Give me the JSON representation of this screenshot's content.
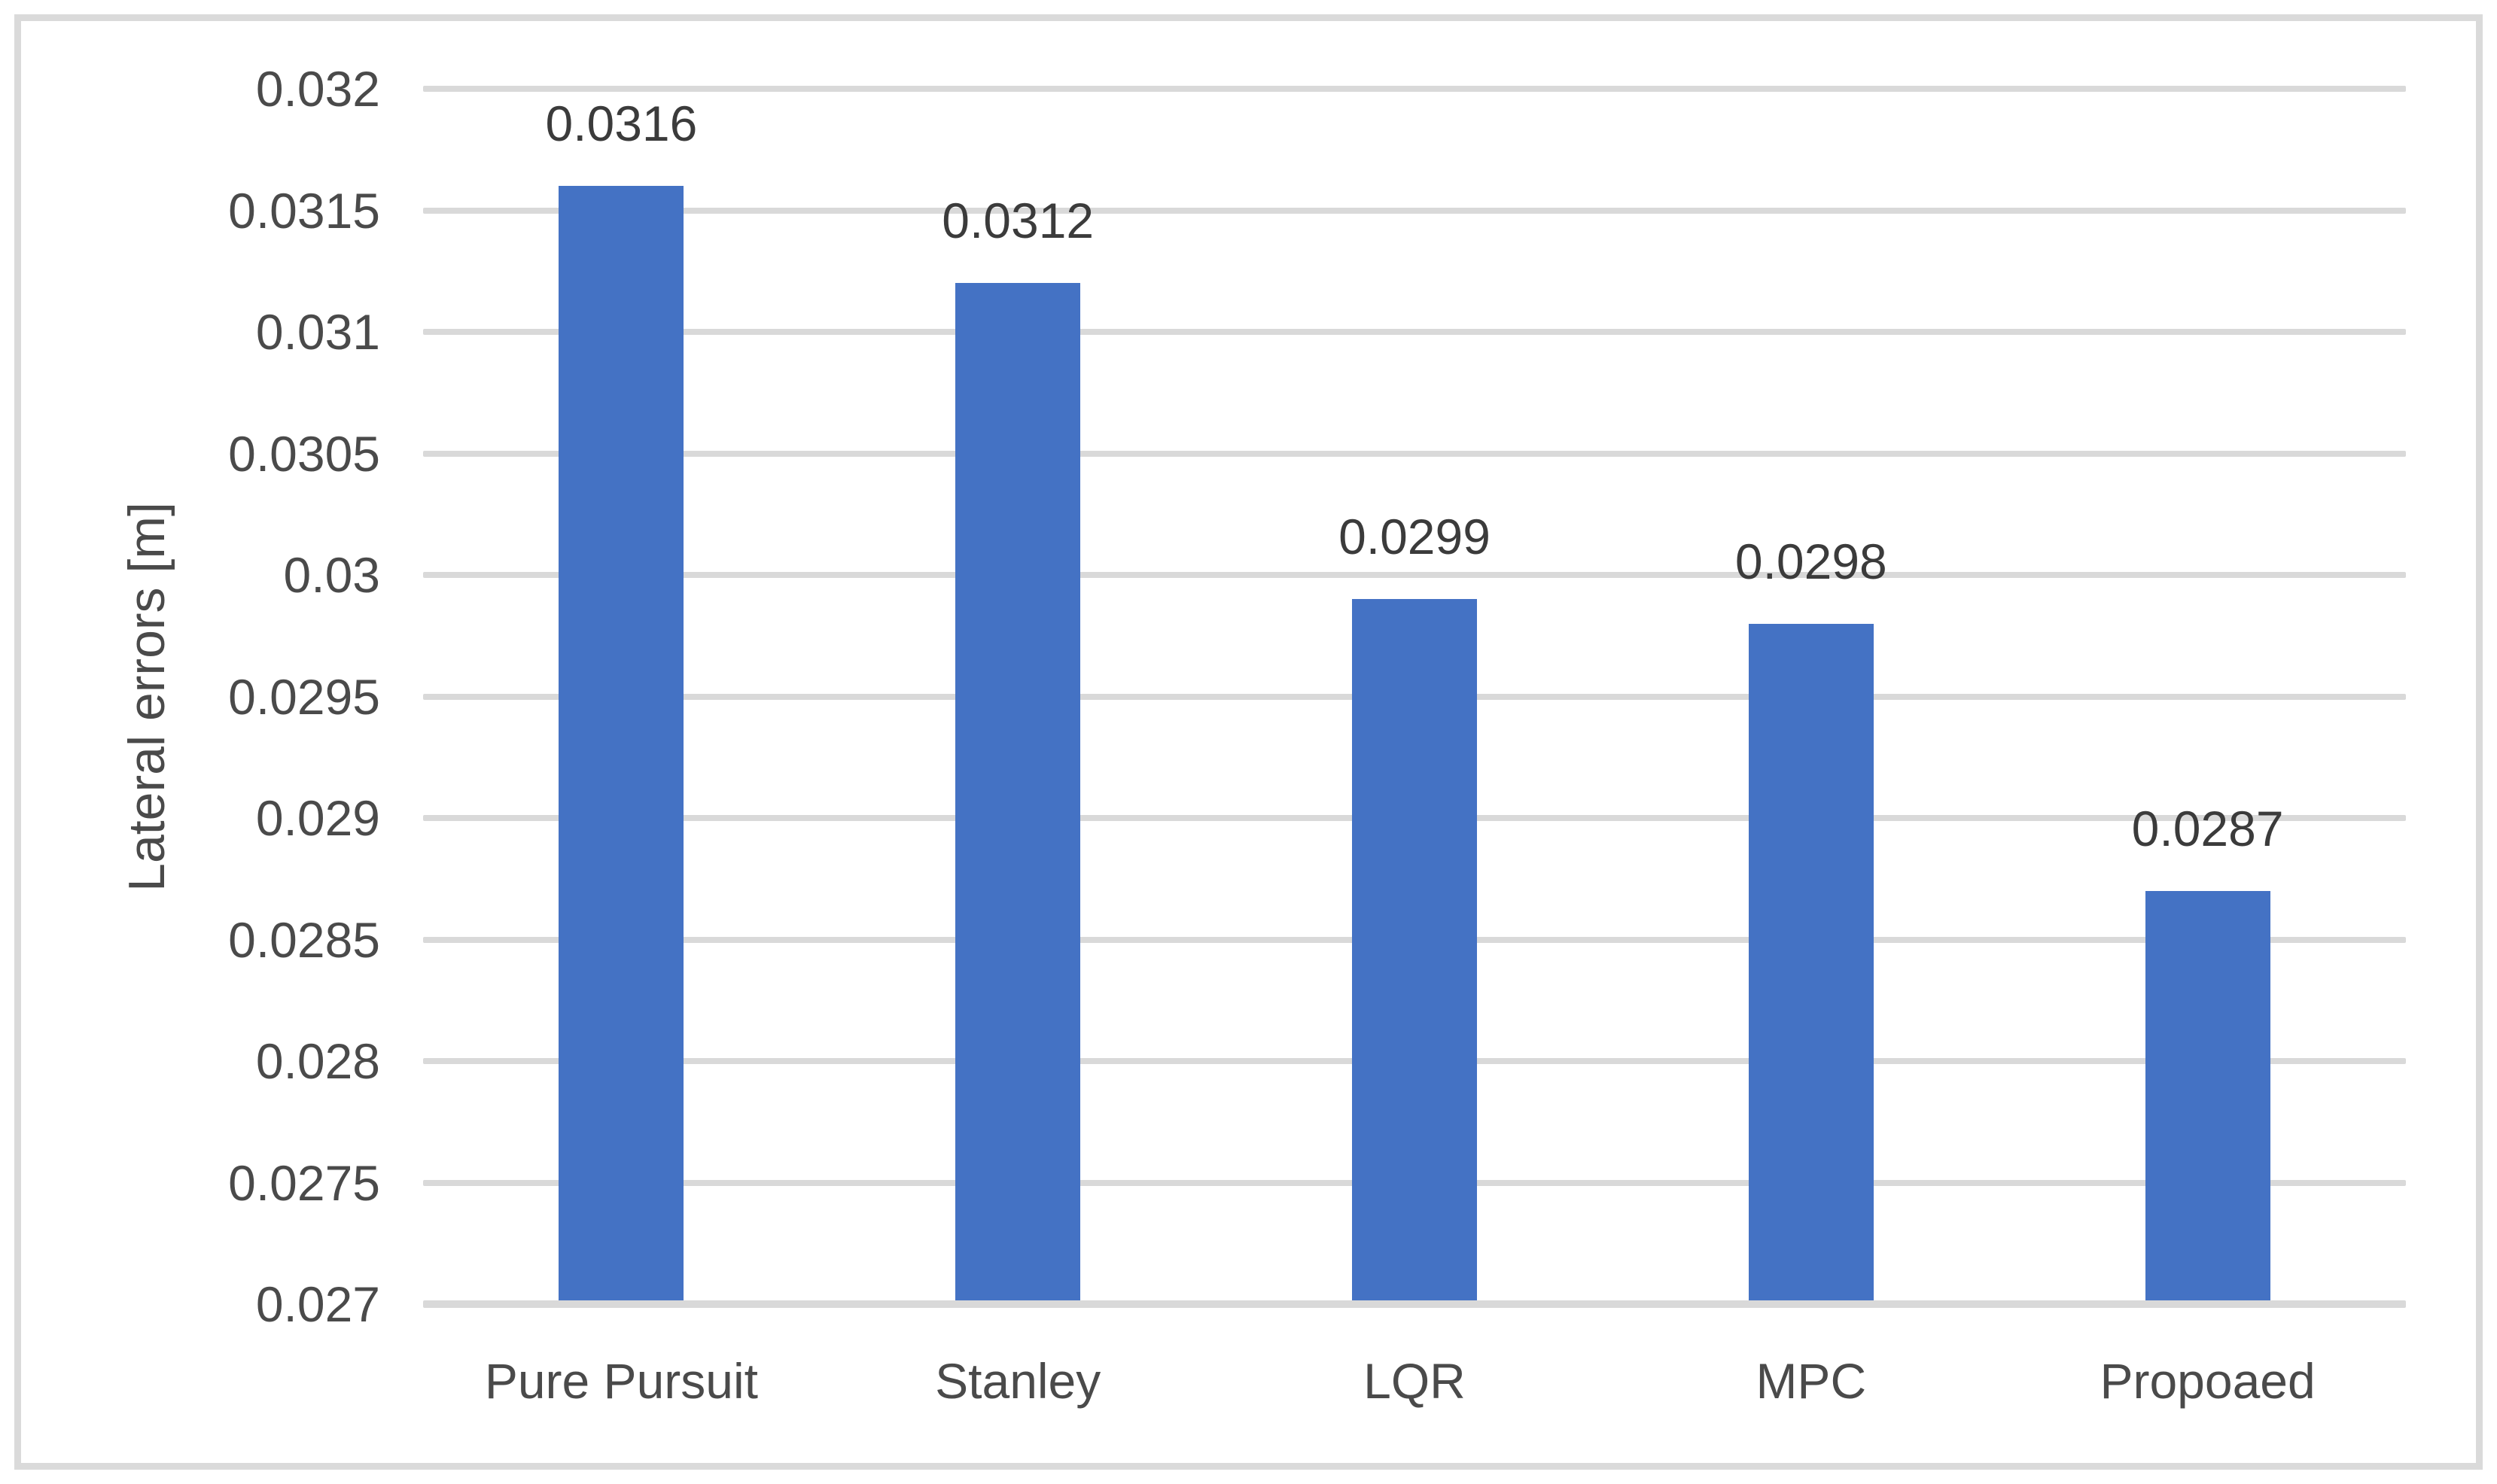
{
  "figure": {
    "background_color": "#ffffff",
    "border_color": "#dadada"
  },
  "chart_data": {
    "type": "bar",
    "title": "",
    "categories": [
      "Pure Pursuit",
      "Stanley",
      "LQR",
      "MPC",
      "Propoaed"
    ],
    "values": [
      0.0316,
      0.0312,
      0.0299,
      0.0298,
      0.0287
    ],
    "data_labels": [
      "0.0316",
      "0.0312",
      "0.0299",
      "0.0298",
      "0.0287"
    ],
    "xlabel": "",
    "ylabel": "Lateral errors [m]",
    "ylim": [
      0.027,
      0.032
    ],
    "ytick_step": 0.0005,
    "ytick_labels": [
      "0.027",
      "0.0275",
      "0.028",
      "0.0285",
      "0.029",
      "0.0295",
      "0.03",
      "0.0305",
      "0.031",
      "0.0315",
      "0.032"
    ],
    "ytick_values": [
      0.027,
      0.0275,
      0.028,
      0.0285,
      0.029,
      0.0295,
      0.03,
      0.0305,
      0.031,
      0.0315,
      0.032
    ],
    "grid": true,
    "legend_position": "none",
    "bar_color": "#4472c4",
    "gridline_color": "#d9d9d9",
    "axis_text_color": "#4a4a4a",
    "data_label_color": "#3b3b3b"
  }
}
